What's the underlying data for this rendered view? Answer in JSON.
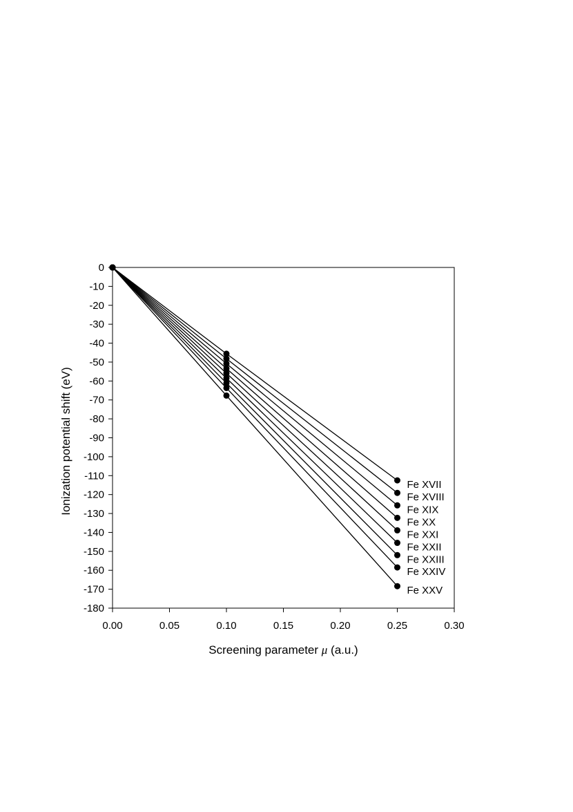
{
  "chart_data": {
    "type": "line",
    "xlabel": "Screening parameter μ (a.u.)",
    "xlabel_parts": {
      "prefix": "Screening parameter ",
      "symbol": "μ",
      "suffix": " (a.u.)"
    },
    "ylabel": "Ionization potential shift (eV)",
    "xlim": [
      0.0,
      0.3
    ],
    "ylim": [
      -180,
      0
    ],
    "xticks": [
      "0.00",
      "0.05",
      "0.10",
      "0.15",
      "0.20",
      "0.25",
      "0.30"
    ],
    "yticks": [
      "0",
      "-10",
      "-20",
      "-30",
      "-40",
      "-50",
      "-60",
      "-70",
      "-80",
      "-90",
      "-100",
      "-110",
      "-120",
      "-130",
      "-140",
      "-150",
      "-160",
      "-170",
      "-180"
    ],
    "grid": false,
    "x": [
      0.0,
      0.1,
      0.25
    ],
    "series": [
      {
        "name": "Fe XVII",
        "values": [
          0,
          -45.6,
          -112.5
        ]
      },
      {
        "name": "Fe XVIII",
        "values": [
          0,
          -48.2,
          -119.1
        ]
      },
      {
        "name": "Fe XIX",
        "values": [
          0,
          -50.8,
          -125.7
        ]
      },
      {
        "name": "Fe XX",
        "values": [
          0,
          -53.4,
          -132.3
        ]
      },
      {
        "name": "Fe XXI",
        "values": [
          0,
          -55.9,
          -138.9
        ]
      },
      {
        "name": "Fe XXII",
        "values": [
          0,
          -58.5,
          -145.5
        ]
      },
      {
        "name": "Fe XXIII",
        "values": [
          0,
          -61.1,
          -152.0
        ]
      },
      {
        "name": "Fe XXIV",
        "values": [
          0,
          -63.7,
          -158.5
        ]
      },
      {
        "name": "Fe XXV",
        "values": [
          0,
          -67.7,
          -168.4
        ]
      }
    ]
  }
}
